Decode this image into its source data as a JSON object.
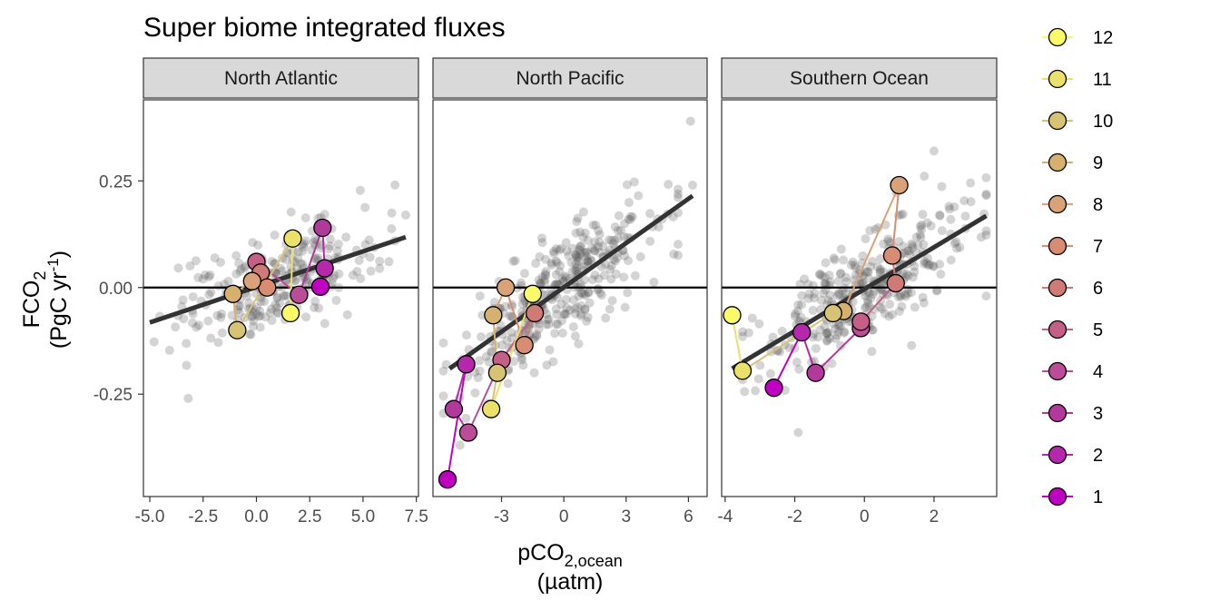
{
  "chart_data": {
    "type": "scatter",
    "title": "Super biome integrated fluxes",
    "ylabel": {
      "main": "FCO",
      "sub": "2",
      "unit_pre": "(PgC yr",
      "unit_sup": "-1",
      "unit_post": ")"
    },
    "xlabel": {
      "main": "pCO",
      "sub": "2,ocean",
      "unit": "(µatm)"
    },
    "ylim": [
      -0.49,
      0.44
    ],
    "y_ticks": [
      -0.25,
      0.0,
      0.25
    ],
    "y_tick_labels": [
      "-0.25",
      "0.00",
      "0.25"
    ],
    "hline_y": 0,
    "grid": false,
    "background_points_color": "#555555",
    "trend_line_color": "#333333",
    "legend": {
      "position": "right",
      "entries": [
        "12",
        "11",
        "10",
        "9",
        "8",
        "7",
        "6",
        "5",
        "4",
        "3",
        "2",
        "1"
      ],
      "colors": {
        "1": "#C000C0",
        "2": "#B528AC",
        "3": "#B2399C",
        "4": "#BB4D98",
        "5": "#C46088",
        "6": "#D07A78",
        "7": "#D88C74",
        "8": "#D9A279",
        "9": "#D6B06E",
        "10": "#D8C374",
        "11": "#EAE06A",
        "12": "#FAF96A"
      }
    },
    "panels": [
      {
        "name": "North Atlantic",
        "xlim": [
          -5.3,
          7.6
        ],
        "x_ticks": [
          -5.0,
          -2.5,
          0.0,
          2.5,
          5.0,
          7.5
        ],
        "x_tick_labels": [
          "-5.0",
          "-2.5",
          "0.0",
          "2.5",
          "5.0",
          "7.5"
        ],
        "trend": {
          "x": [
            -5.0,
            7.0
          ],
          "y": [
            -0.082,
            0.118
          ]
        },
        "cloud": {
          "x_range": [
            -4.8,
            6.5
          ],
          "slope": 0.0165,
          "intercept": 0.0,
          "noise": 0.055,
          "n": 260
        },
        "extra_points": [
          {
            "x": -3.2,
            "y": -0.26
          },
          {
            "x": 7.0,
            "y": 0.17
          }
        ],
        "months": [
          {
            "m": 1,
            "x": 3.0,
            "y": 0.002
          },
          {
            "m": 2,
            "x": 3.2,
            "y": 0.045
          },
          {
            "m": 3,
            "x": 3.1,
            "y": 0.14
          },
          {
            "m": 4,
            "x": 2.0,
            "y": -0.017
          },
          {
            "m": 5,
            "x": 0.0,
            "y": 0.06
          },
          {
            "m": 6,
            "x": 0.2,
            "y": 0.035
          },
          {
            "m": 7,
            "x": 0.5,
            "y": 0.0
          },
          {
            "m": 8,
            "x": -0.2,
            "y": 0.015
          },
          {
            "m": 9,
            "x": -1.1,
            "y": -0.015
          },
          {
            "m": 10,
            "x": -0.9,
            "y": -0.1
          },
          {
            "m": 11,
            "x": 1.7,
            "y": 0.115
          },
          {
            "m": 12,
            "x": 1.6,
            "y": -0.06
          }
        ]
      },
      {
        "name": "North Pacific",
        "xlim": [
          -6.3,
          6.9
        ],
        "x_ticks": [
          -3,
          0,
          3,
          6
        ],
        "x_tick_labels": [
          "-3",
          "0",
          "3",
          "6"
        ],
        "trend": {
          "x": [
            -5.5,
            6.2
          ],
          "y": [
            -0.19,
            0.215
          ]
        },
        "cloud": {
          "x_range": [
            -5.8,
            5.5
          ],
          "slope": 0.035,
          "intercept": 0.0,
          "noise": 0.065,
          "n": 360
        },
        "extra_points": [
          {
            "x": 6.1,
            "y": 0.39
          },
          {
            "x": 6.2,
            "y": 0.24
          },
          {
            "x": -5.0,
            "y": -0.37
          }
        ],
        "months": [
          {
            "m": 1,
            "x": -5.6,
            "y": -0.45
          },
          {
            "m": 2,
            "x": -4.7,
            "y": -0.18
          },
          {
            "m": 3,
            "x": -5.3,
            "y": -0.285
          },
          {
            "m": 4,
            "x": -4.6,
            "y": -0.34
          },
          {
            "m": 5,
            "x": -3.0,
            "y": -0.17
          },
          {
            "m": 6,
            "x": -1.4,
            "y": -0.06
          },
          {
            "m": 7,
            "x": -1.9,
            "y": -0.135
          },
          {
            "m": 8,
            "x": -2.8,
            "y": 0.0
          },
          {
            "m": 9,
            "x": -3.4,
            "y": -0.065
          },
          {
            "m": 10,
            "x": -3.2,
            "y": -0.2
          },
          {
            "m": 11,
            "x": -3.5,
            "y": -0.285
          },
          {
            "m": 12,
            "x": -1.5,
            "y": -0.015
          }
        ]
      },
      {
        "name": "Southern Ocean",
        "xlim": [
          -4.1,
          3.8
        ],
        "x_ticks": [
          -4,
          -2,
          0,
          2
        ],
        "x_tick_labels": [
          "-4",
          "-2",
          "0",
          "2"
        ],
        "trend": {
          "x": [
            -3.8,
            3.5
          ],
          "y": [
            -0.19,
            0.168
          ]
        },
        "cloud": {
          "x_range": [
            -3.5,
            3.5
          ],
          "slope": 0.049,
          "intercept": 0.0,
          "noise": 0.06,
          "n": 340
        },
        "extra_points": [
          {
            "x": -1.9,
            "y": -0.34
          },
          {
            "x": 2.0,
            "y": 0.32
          },
          {
            "x": 3.5,
            "y": -0.02
          }
        ],
        "months": [
          {
            "m": 1,
            "x": -2.6,
            "y": -0.235
          },
          {
            "m": 2,
            "x": -1.8,
            "y": -0.105
          },
          {
            "m": 3,
            "x": -1.4,
            "y": -0.2
          },
          {
            "m": 4,
            "x": -0.1,
            "y": -0.095
          },
          {
            "m": 5,
            "x": -0.1,
            "y": -0.08
          },
          {
            "m": 6,
            "x": 0.9,
            "y": 0.01
          },
          {
            "m": 7,
            "x": 0.8,
            "y": 0.075
          },
          {
            "m": 8,
            "x": 1.0,
            "y": 0.24
          },
          {
            "m": 9,
            "x": -0.6,
            "y": -0.055
          },
          {
            "m": 10,
            "x": -0.9,
            "y": -0.06
          },
          {
            "m": 11,
            "x": -3.5,
            "y": -0.195
          },
          {
            "m": 12,
            "x": -3.8,
            "y": -0.065
          }
        ]
      }
    ]
  }
}
